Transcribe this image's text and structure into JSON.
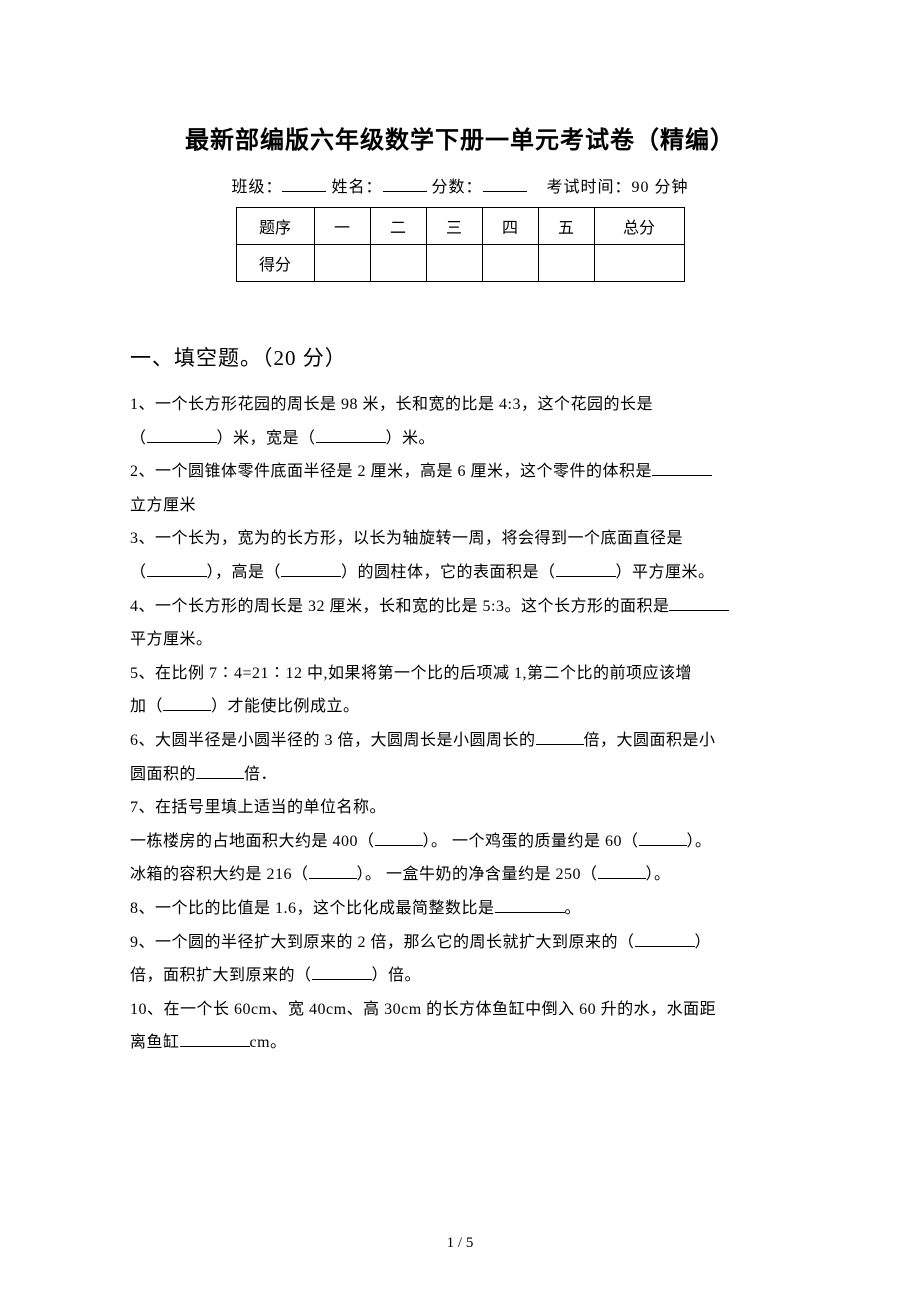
{
  "title": "最新部编版六年级数学下册一单元考试卷（精编）",
  "meta": {
    "class_label": "班级：",
    "name_label": "姓名：",
    "score_label": "分数：",
    "time_label": "考试时间：90 分钟"
  },
  "score_table": {
    "row1": [
      "题序",
      "一",
      "二",
      "三",
      "四",
      "五",
      "总分"
    ],
    "row2_label": "得分"
  },
  "section_title": "一、填空题。（20 分）",
  "q1_a": "1、一个长方形花园的周长是 98 米，长和宽的比是 4:3，这个花园的长是",
  "q1_b": "（",
  "q1_c": "）米，宽是（",
  "q1_d": "）米。",
  "q2_a": "2、一个圆锥体零件底面半径是 2 厘米，高是 6 厘米，这个零件的体积是",
  "q2_b": "立方厘米",
  "q3_a": "3、一个长为，宽为的长方形，以长为轴旋转一周，将会得到一个底面直径是",
  "q3_b": "（",
  "q3_c": "），高是（",
  "q3_d": "）的圆柱体，它的表面积是（",
  "q3_e": "）平方厘米。",
  "q4_a": "4、一个长方形的周长是 32 厘米，长和宽的比是 5:3。这个长方形的面积是",
  "q4_b": "平方厘米。",
  "q5_a": "5、在比例 7∶4=21∶12 中,如果将第一个比的后项减 1,第二个比的前项应该增",
  "q5_b": "加（",
  "q5_c": "）才能使比例成立。",
  "q6_a": "6、大圆半径是小圆半径的 3 倍，大圆周长是小圆周长的",
  "q6_b": "倍，大圆面积是小",
  "q6_c": "圆面积的",
  "q6_d": "倍．",
  "q7_a": "7、在括号里填上适当的单位名称。",
  "q7_b": "一栋楼房的占地面积大约是 400（",
  "q7_c": "）。  一个鸡蛋的质量约是 60（",
  "q7_d": "）。",
  "q7_e": "冰箱的容积大约是 216（",
  "q7_f": "）。    一盒牛奶的净含量约是 250（",
  "q7_g": "）。",
  "q8_a": "8、一个比的比值是 1.6，这个比化成最简整数比是",
  "q8_b": "。",
  "q9_a": "9、一个圆的半径扩大到原来的 2 倍，那么它的周长就扩大到原来的（",
  "q9_b": "）",
  "q9_c": "倍，面积扩大到原来的（",
  "q9_d": "）倍。",
  "q10_a": "10、在一个长 60cm、宽 40cm、高 30cm 的长方体鱼缸中倒入 60 升的水，水面距",
  "q10_b": "离鱼缸",
  "q10_c": "cm。",
  "pager": "1 / 5"
}
